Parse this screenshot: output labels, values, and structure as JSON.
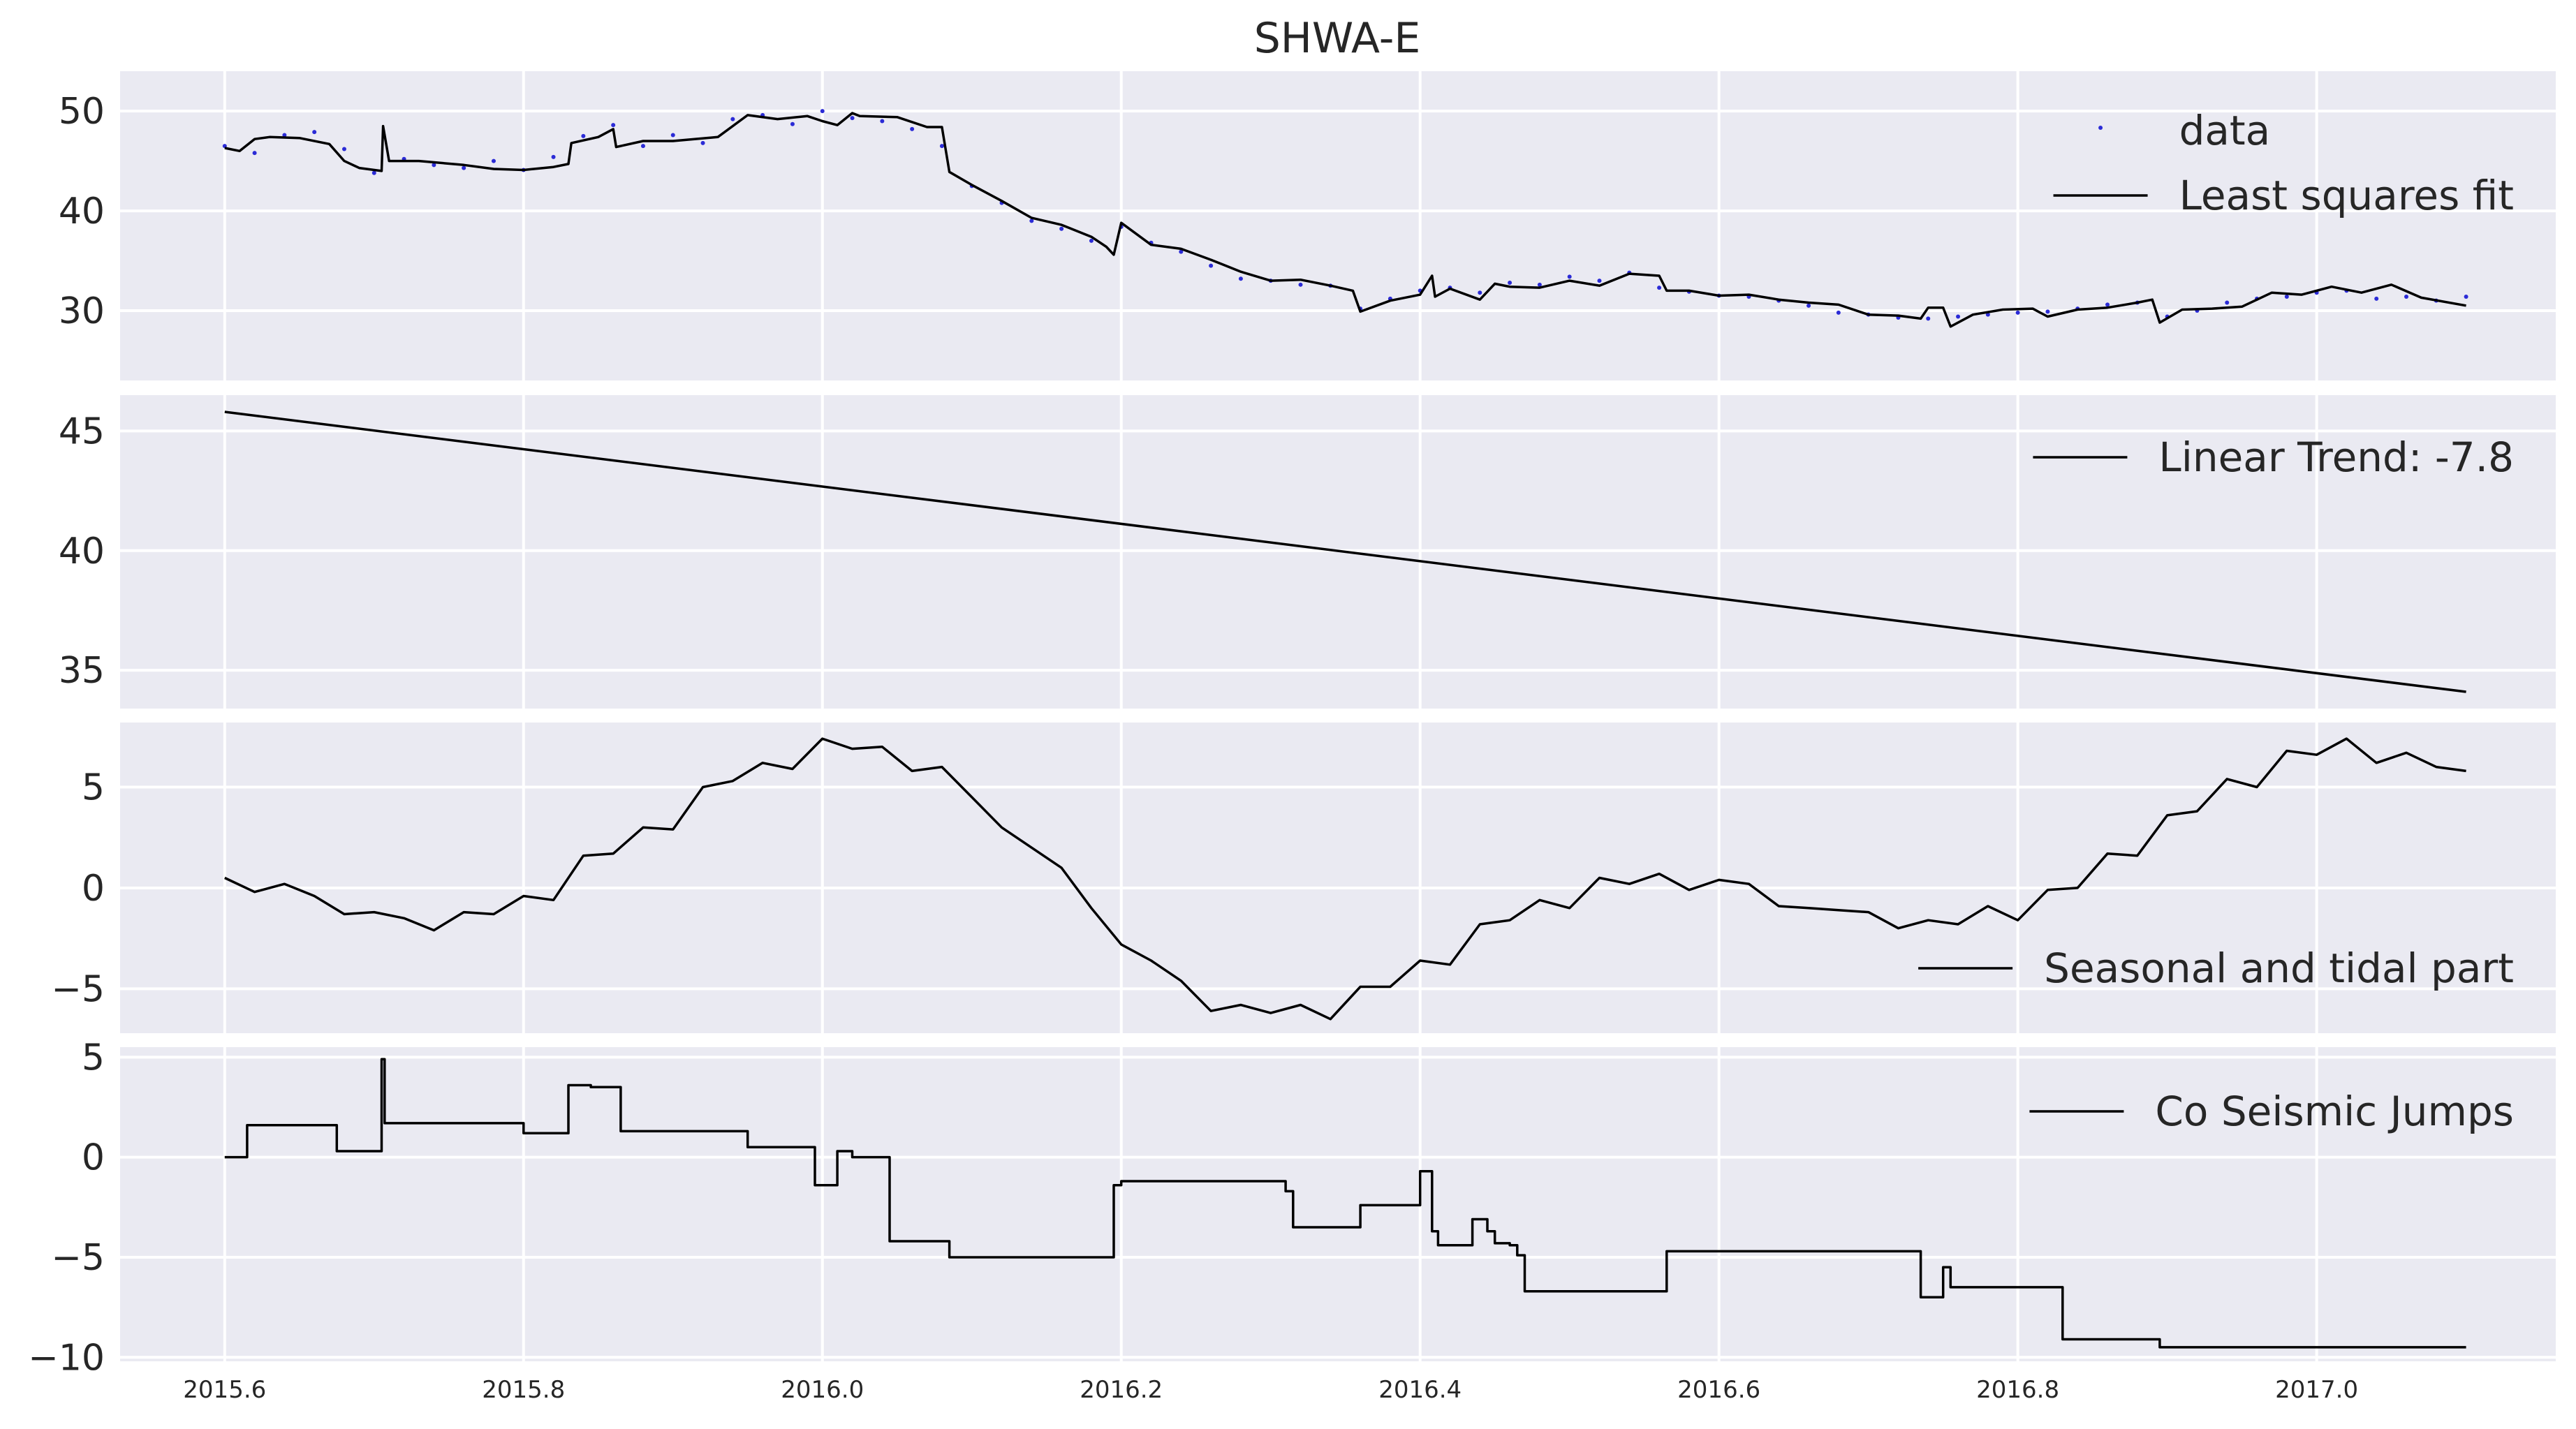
{
  "chart_data": {
    "type": "line",
    "title": "SHWA-E",
    "x_ticks": [
      2015.6,
      2015.8,
      2016.0,
      2016.2,
      2016.4,
      2016.6,
      2016.8,
      2017.0
    ],
    "x_tick_labels": [
      "2015.6",
      "2015.8",
      "2016.0",
      "2016.2",
      "2016.4",
      "2016.6",
      "2016.8",
      "2017.0"
    ],
    "xlim": [
      2015.53,
      2017.16
    ],
    "grid": true,
    "panels": [
      {
        "id": "fit",
        "ylim": [
          23,
          54
        ],
        "y_ticks": [
          30,
          40,
          50
        ],
        "y_tick_labels": [
          "30",
          "40",
          "50"
        ],
        "legend_position": "upper right",
        "series": [
          {
            "name": "data",
            "style": "points",
            "color": "#2b2bd6",
            "x": [
              2015.6,
              2015.62,
              2015.64,
              2015.66,
              2015.68,
              2015.7,
              2015.72,
              2015.74,
              2015.76,
              2015.78,
              2015.8,
              2015.82,
              2015.84,
              2015.86,
              2015.88,
              2015.9,
              2015.92,
              2015.94,
              2015.96,
              2015.98,
              2016.0,
              2016.02,
              2016.04,
              2016.06,
              2016.08,
              2016.1,
              2016.12,
              2016.14,
              2016.16,
              2016.18,
              2016.2,
              2016.22,
              2016.24,
              2016.26,
              2016.28,
              2016.3,
              2016.32,
              2016.34,
              2016.36,
              2016.38,
              2016.4,
              2016.42,
              2016.44,
              2016.46,
              2016.48,
              2016.5,
              2016.52,
              2016.54,
              2016.56,
              2016.58,
              2016.6,
              2016.62,
              2016.64,
              2016.66,
              2016.68,
              2016.7,
              2016.72,
              2016.74,
              2016.76,
              2016.78,
              2016.8,
              2016.82,
              2016.84,
              2016.86,
              2016.88,
              2016.9,
              2016.92,
              2016.94,
              2016.96,
              2016.98,
              2017.0,
              2017.02,
              2017.04,
              2017.06,
              2017.08,
              2017.1
            ],
            "y": [
              46.5,
              45.8,
              47.6,
              47.9,
              46.2,
              43.8,
              45.2,
              44.6,
              44.3,
              45.0,
              44.1,
              45.4,
              47.5,
              48.6,
              46.5,
              47.6,
              46.8,
              49.2,
              49.6,
              48.7,
              50.0,
              49.3,
              49.0,
              48.2,
              46.5,
              42.5,
              40.8,
              39.0,
              38.2,
              37.0,
              38.4,
              36.8,
              35.9,
              34.5,
              33.2,
              33.0,
              32.6,
              32.5,
              30.2,
              31.2,
              32.0,
              32.3,
              31.8,
              32.8,
              32.6,
              33.4,
              33.0,
              33.8,
              32.3,
              31.9,
              31.5,
              31.4,
              31.0,
              30.5,
              29.8,
              29.6,
              29.3,
              29.2,
              29.4,
              29.6,
              29.8,
              29.9,
              30.2,
              30.6,
              30.8,
              29.4,
              30.0,
              30.8,
              31.2,
              31.4,
              31.8,
              32.0,
              31.2,
              31.4,
              31.0,
              31.4
            ]
          },
          {
            "name": "Least squares fit",
            "style": "line",
            "color": "#000000",
            "x": [
              2015.6,
              2015.61,
              2015.62,
              2015.63,
              2015.65,
              2015.67,
              2015.68,
              2015.69,
              2015.705,
              2015.706,
              2015.71,
              2015.73,
              2015.76,
              2015.78,
              2015.8,
              2015.82,
              2015.83,
              2015.832,
              2015.85,
              2015.86,
              2015.862,
              2015.88,
              2015.9,
              2015.93,
              2015.95,
              2015.97,
              2015.99,
              2016.0,
              2016.01,
              2016.02,
              2016.025,
              2016.05,
              2016.07,
              2016.08,
              2016.085,
              2016.1,
              2016.12,
              2016.14,
              2016.16,
              2016.18,
              2016.19,
              2016.195,
              2016.2,
              2016.22,
              2016.24,
              2016.26,
              2016.28,
              2016.3,
              2016.32,
              2016.34,
              2016.355,
              2016.36,
              2016.38,
              2016.4,
              2016.408,
              2016.41,
              2016.42,
              2016.44,
              2016.45,
              2016.46,
              2016.48,
              2016.5,
              2016.52,
              2016.54,
              2016.56,
              2016.565,
              2016.58,
              2016.6,
              2016.62,
              2016.64,
              2016.66,
              2016.68,
              2016.7,
              2016.72,
              2016.735,
              2016.74,
              2016.75,
              2016.755,
              2016.77,
              2016.79,
              2016.81,
              2016.82,
              2016.84,
              2016.86,
              2016.88,
              2016.89,
              2016.895,
              2016.91,
              2016.93,
              2016.95,
              2016.97,
              2016.99,
              2017.01,
              2017.03,
              2017.05,
              2017.07,
              2017.1
            ],
            "y": [
              46.3,
              46.0,
              47.2,
              47.4,
              47.3,
              46.7,
              45.0,
              44.3,
              44.0,
              48.5,
              45.0,
              45.0,
              44.6,
              44.2,
              44.1,
              44.4,
              44.7,
              46.8,
              47.4,
              48.2,
              46.4,
              47.0,
              47.0,
              47.4,
              49.6,
              49.2,
              49.5,
              49.0,
              48.6,
              49.8,
              49.5,
              49.4,
              48.4,
              48.4,
              43.9,
              42.6,
              41.0,
              39.3,
              38.6,
              37.4,
              36.4,
              35.6,
              38.8,
              36.6,
              36.2,
              35.1,
              33.9,
              33.0,
              33.1,
              32.5,
              32.0,
              29.9,
              31.0,
              31.6,
              33.5,
              31.4,
              32.2,
              31.1,
              32.7,
              32.4,
              32.3,
              33.0,
              32.5,
              33.7,
              33.5,
              32.0,
              32.0,
              31.5,
              31.6,
              31.1,
              30.8,
              30.6,
              29.6,
              29.5,
              29.2,
              30.3,
              30.3,
              28.4,
              29.6,
              30.1,
              30.2,
              29.4,
              30.1,
              30.3,
              30.8,
              31.1,
              28.8,
              30.1,
              30.2,
              30.4,
              31.8,
              31.6,
              32.4,
              31.8,
              32.6,
              31.3,
              30.5
            ]
          }
        ]
      },
      {
        "id": "trend",
        "ylim": [
          33.4,
          46.5
        ],
        "y_ticks": [
          35,
          40,
          45
        ],
        "y_tick_labels": [
          "35",
          "40",
          "45"
        ],
        "legend_position": "upper right",
        "series": [
          {
            "name": "Linear Trend: -7.8",
            "style": "line",
            "color": "#000000",
            "x": [
              2015.6,
              2017.1
            ],
            "y": [
              45.8,
              34.1
            ]
          }
        ]
      },
      {
        "id": "seasonal",
        "ylim": [
          -7.2,
          8.2
        ],
        "y_ticks": [
          -5,
          0,
          5
        ],
        "y_tick_labels": [
          "−5",
          "0",
          "5"
        ],
        "legend_position": "lower right",
        "series": [
          {
            "name": "Seasonal and tidal part",
            "style": "line",
            "color": "#000000",
            "x": [
              2015.6,
              2015.62,
              2015.64,
              2015.66,
              2015.68,
              2015.7,
              2015.72,
              2015.74,
              2015.76,
              2015.78,
              2015.8,
              2015.82,
              2015.84,
              2015.86,
              2015.88,
              2015.9,
              2015.92,
              2015.94,
              2015.96,
              2015.98,
              2016.0,
              2016.02,
              2016.04,
              2016.06,
              2016.08,
              2016.1,
              2016.12,
              2016.14,
              2016.16,
              2016.18,
              2016.2,
              2016.22,
              2016.24,
              2016.26,
              2016.28,
              2016.3,
              2016.32,
              2016.34,
              2016.36,
              2016.38,
              2016.4,
              2016.42,
              2016.44,
              2016.46,
              2016.48,
              2016.5,
              2016.52,
              2016.54,
              2016.56,
              2016.58,
              2016.6,
              2016.62,
              2016.64,
              2016.66,
              2016.68,
              2016.7,
              2016.72,
              2016.74,
              2016.76,
              2016.78,
              2016.8,
              2016.82,
              2016.84,
              2016.86,
              2016.88,
              2016.9,
              2016.92,
              2016.94,
              2016.96,
              2016.98,
              2017.0,
              2017.02,
              2017.04,
              2017.06,
              2017.08,
              2017.1
            ],
            "y": [
              0.5,
              -0.2,
              0.2,
              -0.4,
              -1.3,
              -1.2,
              -1.5,
              -2.1,
              -1.2,
              -1.3,
              -0.4,
              -0.6,
              1.6,
              1.7,
              3.0,
              2.9,
              5.0,
              5.3,
              6.2,
              5.9,
              7.4,
              6.9,
              7.0,
              5.8,
              6.0,
              4.5,
              3.0,
              2.0,
              1.0,
              -1.0,
              -2.8,
              -3.6,
              -4.6,
              -6.1,
              -5.8,
              -6.2,
              -5.8,
              -6.5,
              -4.9,
              -4.9,
              -3.6,
              -3.8,
              -1.8,
              -1.6,
              -0.6,
              -1.0,
              0.5,
              0.2,
              0.7,
              -0.1,
              0.4,
              0.2,
              -0.9,
              -1.0,
              -1.1,
              -1.2,
              -2.0,
              -1.6,
              -1.8,
              -0.9,
              -1.6,
              -0.1,
              0.0,
              1.7,
              1.6,
              3.6,
              3.8,
              5.4,
              5.0,
              6.8,
              6.6,
              7.4,
              6.2,
              6.7,
              6.0,
              5.8
            ]
          }
        ]
      },
      {
        "id": "jumps",
        "ylim": [
          -10.2,
          5.5
        ],
        "y_ticks": [
          -10,
          -5,
          0,
          5
        ],
        "y_tick_labels": [
          "−10",
          "−5",
          "0",
          "5"
        ],
        "legend_position": "upper right",
        "series": [
          {
            "name": "Co Seismic Jumps",
            "style": "step",
            "color": "#000000",
            "x": [
              2015.6,
              2015.615,
              2015.615,
              2015.675,
              2015.675,
              2015.705,
              2015.705,
              2015.707,
              2015.707,
              2015.8,
              2015.8,
              2015.83,
              2015.83,
              2015.845,
              2015.845,
              2015.865,
              2015.865,
              2015.95,
              2015.95,
              2015.995,
              2015.995,
              2016.01,
              2016.01,
              2016.02,
              2016.02,
              2016.045,
              2016.045,
              2016.085,
              2016.085,
              2016.195,
              2016.195,
              2016.2,
              2016.2,
              2016.31,
              2016.31,
              2016.315,
              2016.315,
              2016.36,
              2016.36,
              2016.4,
              2016.4,
              2016.408,
              2016.408,
              2016.412,
              2016.412,
              2016.435,
              2016.435,
              2016.445,
              2016.445,
              2016.45,
              2016.45,
              2016.46,
              2016.46,
              2016.465,
              2016.465,
              2016.47,
              2016.47,
              2016.565,
              2016.565,
              2016.735,
              2016.735,
              2016.75,
              2016.75,
              2016.755,
              2016.755,
              2016.83,
              2016.83,
              2016.895,
              2016.895,
              2016.985,
              2016.985,
              2017.1
            ],
            "y": [
              0.0,
              0.0,
              1.6,
              1.6,
              0.3,
              0.3,
              4.9,
              4.9,
              1.7,
              1.7,
              1.2,
              1.2,
              3.6,
              3.6,
              3.5,
              3.5,
              1.3,
              1.3,
              0.5,
              0.5,
              -1.4,
              -1.4,
              0.3,
              0.3,
              0.0,
              0.0,
              -4.2,
              -4.2,
              -5.0,
              -5.0,
              -1.4,
              -1.4,
              -1.2,
              -1.2,
              -1.7,
              -1.7,
              -3.5,
              -3.5,
              -2.4,
              -2.4,
              -0.7,
              -0.7,
              -3.7,
              -3.7,
              -4.4,
              -4.4,
              -3.1,
              -3.1,
              -3.7,
              -3.7,
              -4.3,
              -4.3,
              -4.4,
              -4.4,
              -4.9,
              -4.9,
              -6.7,
              -6.7,
              -4.7,
              -4.7,
              -7.0,
              -7.0,
              -5.5,
              -5.5,
              -6.5,
              -6.5,
              -9.1,
              -9.1,
              -9.5,
              -9.5,
              -9.5,
              -9.5
            ]
          }
        ]
      }
    ]
  }
}
